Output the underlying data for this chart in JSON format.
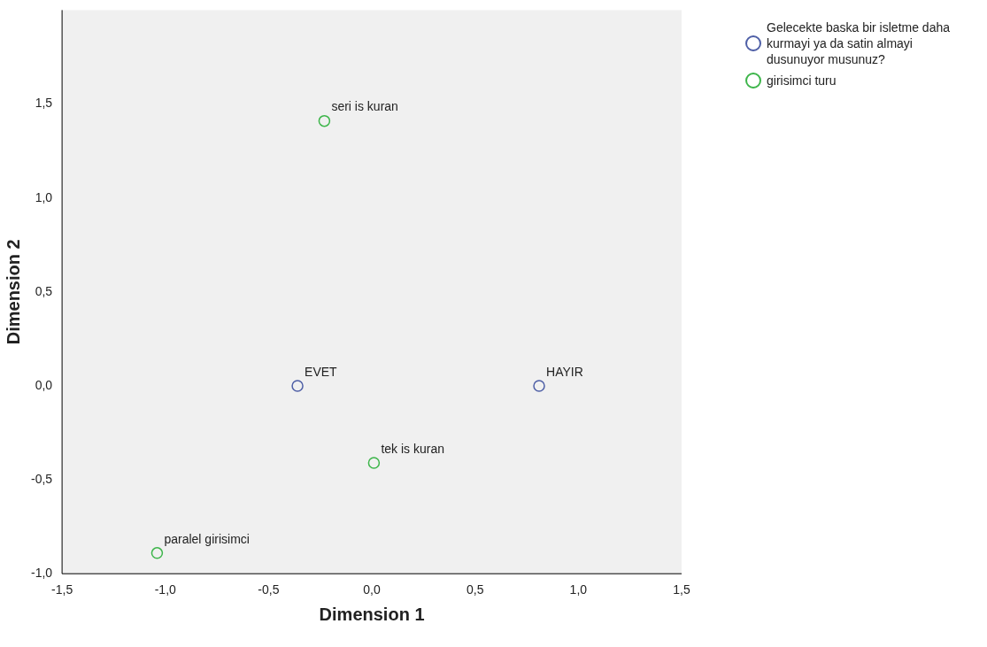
{
  "chart_data": {
    "type": "scatter",
    "xlabel": "Dimension 1",
    "ylabel": "Dimension 2",
    "series": [
      {
        "name": "Gelecekte baska bir isletme daha kurmayi ya da satin almayi dusunuyor musunuz?",
        "color": "#4e5fa6",
        "x": [
          -0.36,
          0.81
        ],
        "values": [
          0,
          0
        ]
      },
      {
        "name": "girisimci turu",
        "color": "#3db54a",
        "x": [
          -0.23,
          0.01,
          -1.04
        ],
        "values": [
          1.41,
          -0.41,
          -0.89
        ]
      }
    ],
    "annotations": [
      {
        "text": "EVET",
        "x": -0.36,
        "y": 0
      },
      {
        "text": "HAYIR",
        "x": 0.81,
        "y": 0
      },
      {
        "text": "seri is kuran",
        "x": -0.23,
        "y": 1.41
      },
      {
        "text": "tek is kuran",
        "x": 0.01,
        "y": -0.41
      },
      {
        "text": "paralel girisimci",
        "x": -1.04,
        "y": -0.89
      }
    ],
    "xlim": [
      -1.5,
      1.5
    ],
    "ylim": [
      -1.0,
      2.0
    ],
    "xticks": [
      {
        "value": -1.5,
        "label": "-1,5"
      },
      {
        "value": -1.0,
        "label": "-1,0"
      },
      {
        "value": -0.5,
        "label": "-0,5"
      },
      {
        "value": 0,
        "label": "0,0"
      },
      {
        "value": 0.5,
        "label": "0,5"
      },
      {
        "value": 1.0,
        "label": "1,0"
      },
      {
        "value": 1.5,
        "label": "1,5"
      }
    ],
    "yticks": [
      {
        "value": -1.0,
        "label": "-1,0"
      },
      {
        "value": -0.5,
        "label": "-0,5"
      },
      {
        "value": 0,
        "label": "0,0"
      },
      {
        "value": 0.5,
        "label": "0,5"
      },
      {
        "value": 1.0,
        "label": "1,0"
      },
      {
        "value": 1.5,
        "label": "1,5"
      }
    ],
    "grid": false,
    "legend": "right",
    "marker": "circle"
  }
}
